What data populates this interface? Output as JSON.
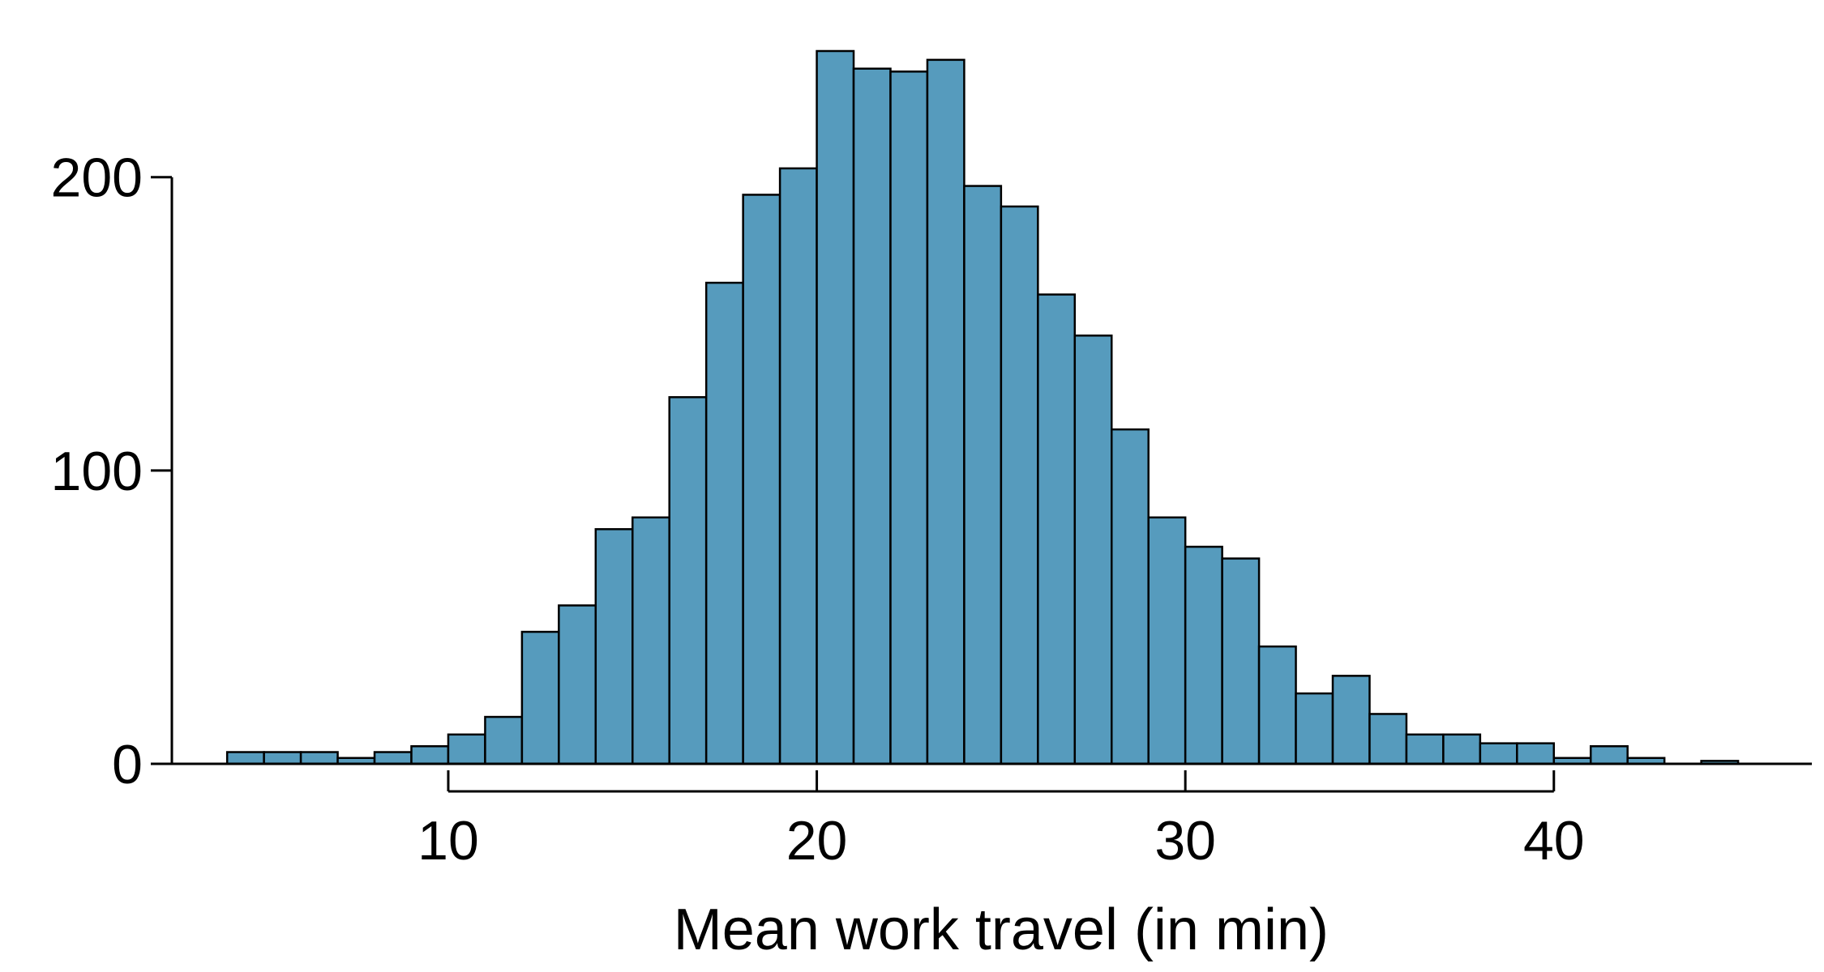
{
  "chart_data": {
    "type": "bar",
    "subtype": "histogram",
    "title": "",
    "xlabel": "Mean work travel (in min)",
    "ylabel": "",
    "bin_width": 1,
    "bins": [
      {
        "start": 4,
        "end": 5,
        "count": 4
      },
      {
        "start": 5,
        "end": 6,
        "count": 4
      },
      {
        "start": 6,
        "end": 7,
        "count": 4
      },
      {
        "start": 7,
        "end": 8,
        "count": 2
      },
      {
        "start": 8,
        "end": 9,
        "count": 4
      },
      {
        "start": 9,
        "end": 10,
        "count": 6
      },
      {
        "start": 10,
        "end": 11,
        "count": 10
      },
      {
        "start": 11,
        "end": 12,
        "count": 16
      },
      {
        "start": 12,
        "end": 13,
        "count": 45
      },
      {
        "start": 13,
        "end": 14,
        "count": 54
      },
      {
        "start": 14,
        "end": 15,
        "count": 80
      },
      {
        "start": 15,
        "end": 16,
        "count": 84
      },
      {
        "start": 16,
        "end": 17,
        "count": 125
      },
      {
        "start": 17,
        "end": 18,
        "count": 164
      },
      {
        "start": 18,
        "end": 19,
        "count": 194
      },
      {
        "start": 19,
        "end": 20,
        "count": 203
      },
      {
        "start": 20,
        "end": 21,
        "count": 243
      },
      {
        "start": 21,
        "end": 22,
        "count": 237
      },
      {
        "start": 22,
        "end": 23,
        "count": 236
      },
      {
        "start": 23,
        "end": 24,
        "count": 240
      },
      {
        "start": 24,
        "end": 25,
        "count": 197
      },
      {
        "start": 25,
        "end": 26,
        "count": 190
      },
      {
        "start": 26,
        "end": 27,
        "count": 160
      },
      {
        "start": 27,
        "end": 28,
        "count": 146
      },
      {
        "start": 28,
        "end": 29,
        "count": 114
      },
      {
        "start": 29,
        "end": 30,
        "count": 84
      },
      {
        "start": 30,
        "end": 31,
        "count": 74
      },
      {
        "start": 31,
        "end": 32,
        "count": 70
      },
      {
        "start": 32,
        "end": 33,
        "count": 40
      },
      {
        "start": 33,
        "end": 34,
        "count": 24
      },
      {
        "start": 34,
        "end": 35,
        "count": 30
      },
      {
        "start": 35,
        "end": 36,
        "count": 17
      },
      {
        "start": 36,
        "end": 37,
        "count": 10
      },
      {
        "start": 37,
        "end": 38,
        "count": 10
      },
      {
        "start": 38,
        "end": 39,
        "count": 7
      },
      {
        "start": 39,
        "end": 40,
        "count": 7
      },
      {
        "start": 40,
        "end": 41,
        "count": 2
      },
      {
        "start": 41,
        "end": 42,
        "count": 6
      },
      {
        "start": 42,
        "end": 43,
        "count": 2
      },
      {
        "start": 44,
        "end": 45,
        "count": 1
      }
    ],
    "xticks": [
      10,
      20,
      30,
      40
    ],
    "yticks": [
      0,
      100,
      200
    ],
    "xlim": [
      2.5,
      47
    ],
    "ylim": [
      0,
      243
    ],
    "grid": false,
    "legend": "none",
    "bar_color": "#569bbd",
    "edge_color": "#000000"
  }
}
